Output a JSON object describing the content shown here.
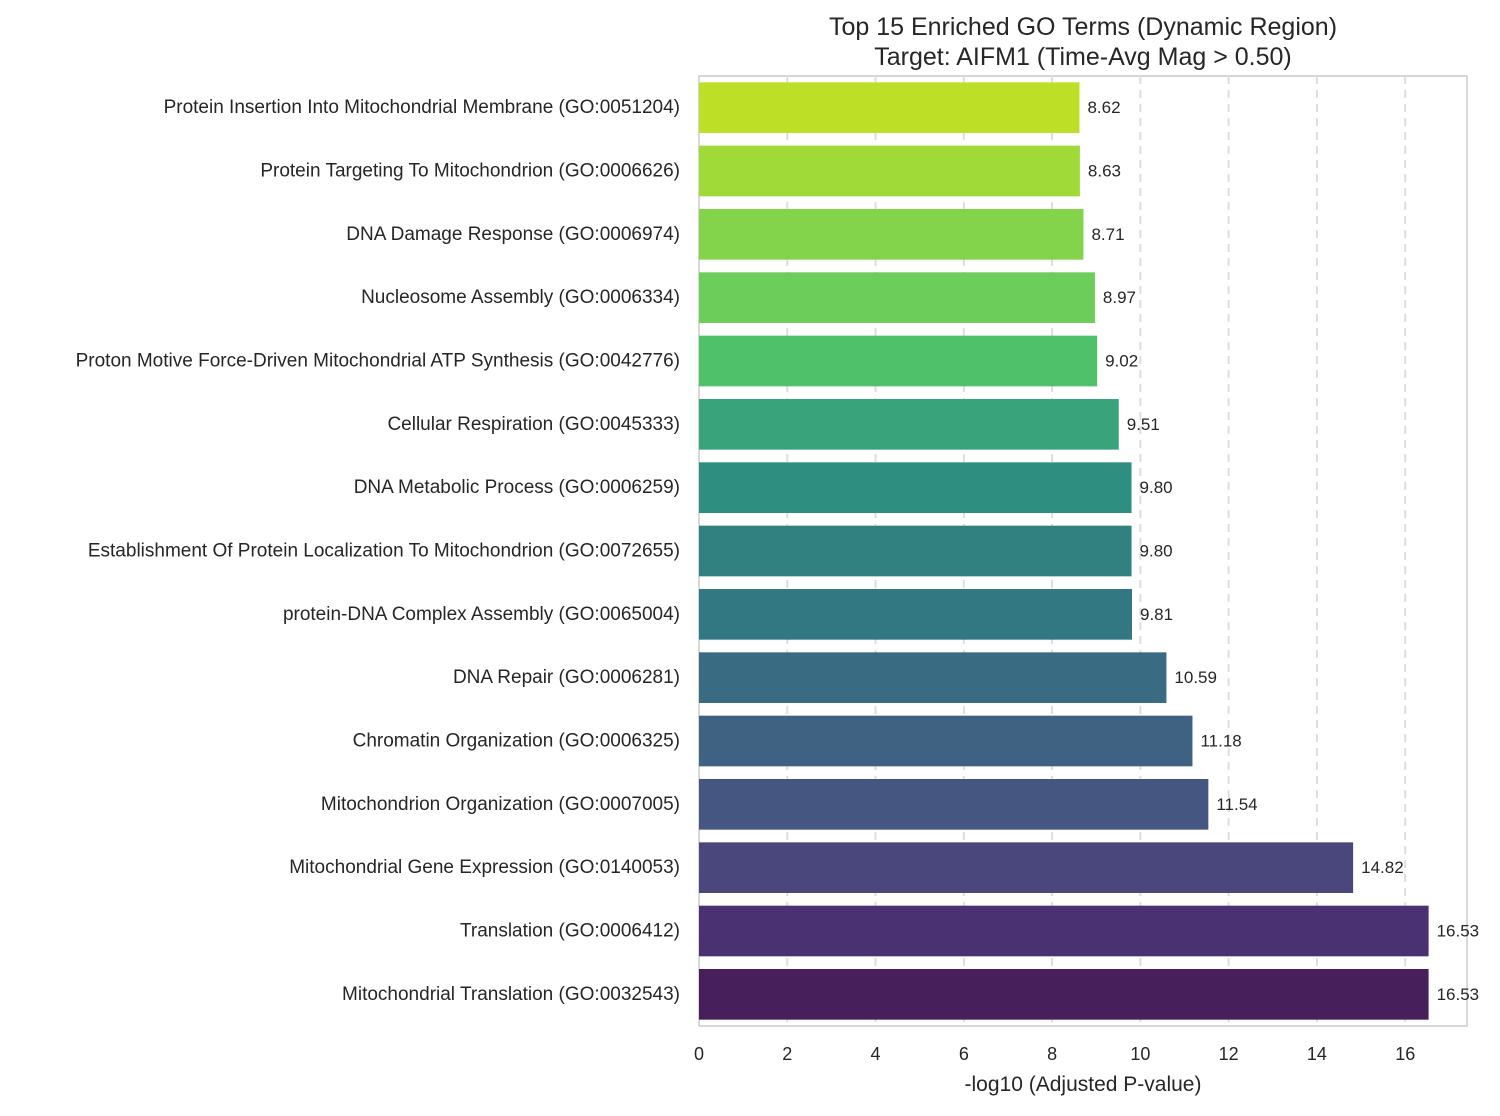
{
  "chart_data": {
    "type": "bar",
    "orientation": "horizontal",
    "title_lines": [
      "Top 15 Enriched GO Terms (Dynamic Region)",
      "Target: AIFM1 (Time-Avg Mag > 0.50)"
    ],
    "xlabel": "-log10 (Adjusted P-value)",
    "ylabel": "",
    "xlim": [
      0,
      17.4
    ],
    "xticks": [
      0,
      2,
      4,
      6,
      8,
      10,
      12,
      14,
      16
    ],
    "grid": "vertical dashed",
    "categories": [
      "Protein Insertion Into Mitochondrial Membrane (GO:0051204)",
      "Protein Targeting To Mitochondrion (GO:0006626)",
      "DNA Damage Response (GO:0006974)",
      "Nucleosome Assembly (GO:0006334)",
      "Proton Motive Force-Driven Mitochondrial ATP Synthesis (GO:0042776)",
      "Cellular Respiration (GO:0045333)",
      "DNA Metabolic Process (GO:0006259)",
      "Establishment Of Protein Localization To Mitochondrion (GO:0072655)",
      "protein-DNA Complex Assembly (GO:0065004)",
      "DNA Repair (GO:0006281)",
      "Chromatin Organization (GO:0006325)",
      "Mitochondrion Organization (GO:0007005)",
      "Mitochondrial Gene Expression (GO:0140053)",
      "Translation (GO:0006412)",
      "Mitochondrial Translation (GO:0032543)"
    ],
    "values": [
      8.62,
      8.63,
      8.71,
      8.97,
      9.02,
      9.51,
      9.8,
      9.8,
      9.81,
      10.59,
      11.18,
      11.54,
      14.82,
      16.53,
      16.53
    ],
    "value_labels": [
      "8.62",
      "8.63",
      "8.71",
      "8.97",
      "9.02",
      "9.51",
      "9.80",
      "9.80",
      "9.81",
      "10.59",
      "11.18",
      "11.54",
      "14.82",
      "16.53",
      "16.53"
    ],
    "colors": [
      "#bddf26",
      "#a0da39",
      "#84d44b",
      "#6ccd5a",
      "#4fc16b",
      "#39a47b",
      "#2e8f80",
      "#318181",
      "#317883",
      "#396b83",
      "#3f6283",
      "#455681",
      "#4a477d",
      "#4a3272",
      "#471f5b"
    ],
    "colormap": "viridis"
  }
}
